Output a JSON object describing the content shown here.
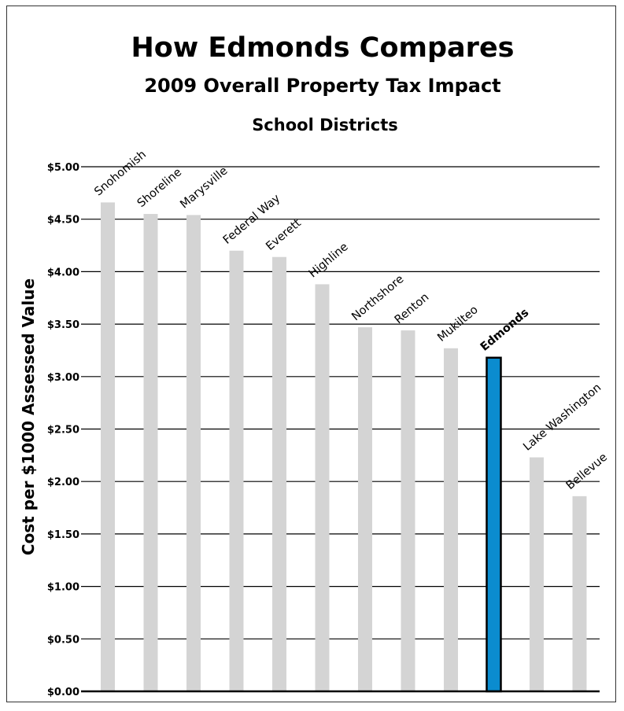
{
  "chart_data": {
    "type": "bar",
    "title": "How Edmonds Compares",
    "subtitle": "2009 Overall Property Tax Impact",
    "subtitle2": "School Districts",
    "ylabel": "Cost per $1000 Assessed Value",
    "xlabel": "",
    "ylim": [
      0,
      5
    ],
    "y_ticks": [
      "$0.00",
      "$0.50",
      "$1.00",
      "$1.50",
      "$2.00",
      "$2.50",
      "$3.00",
      "$3.50",
      "$4.00",
      "$4.50",
      "$5.00"
    ],
    "grid": true,
    "categories": [
      "Snohomish",
      "Shoreline",
      "Marysville",
      "Federal Way",
      "Everett",
      "Highline",
      "Northshore",
      "Renton",
      "Mukilteo",
      "Edmonds",
      "Lake Washington",
      "Bellevue"
    ],
    "values": [
      4.66,
      4.55,
      4.54,
      4.2,
      4.14,
      3.88,
      3.47,
      3.44,
      3.27,
      3.18,
      2.23,
      1.86
    ],
    "highlight": "Edmonds",
    "colors": {
      "bar": "#d4d4d4",
      "highlight": "#0b8ccf",
      "highlight_border": "#000000",
      "grid": "#000000"
    }
  }
}
